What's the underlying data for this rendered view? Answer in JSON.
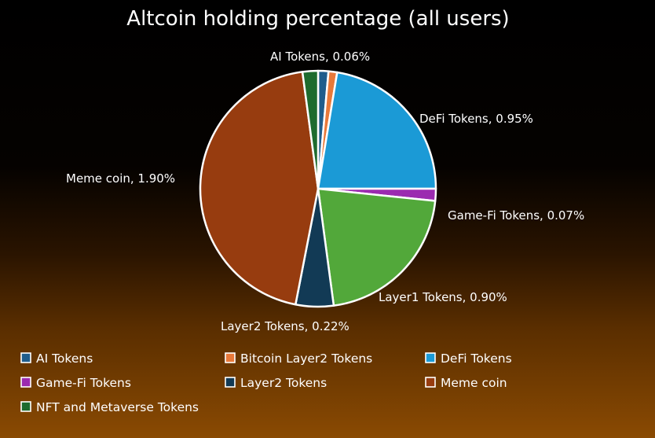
{
  "chart_data": {
    "type": "pie",
    "title": "Altcoin holding percentage (all users)",
    "categories": [
      "AI Tokens",
      "Bitcoin Layer2 Tokens",
      "DeFi Tokens",
      "Game-Fi Tokens",
      "Layer1 Tokens",
      "Layer2 Tokens",
      "Meme coin",
      "NFT and Metaverse Tokens"
    ],
    "values": [
      0.06,
      0.05,
      0.95,
      0.07,
      0.9,
      0.22,
      1.9,
      0.09
    ],
    "colors": [
      "#1f5d8c",
      "#e8793a",
      "#1b9ad6",
      "#9b2bb0",
      "#52a83a",
      "#123a55",
      "#973c0f",
      "#1e6b2e"
    ],
    "data_labels": [
      "AI Tokens, 0.06%",
      "",
      "DeFi Tokens, 0.95%",
      "Game-Fi Tokens, 0.07%",
      "Layer1 Tokens, 0.90%",
      "Layer2 Tokens, 0.22%",
      "Meme coin, 1.90%",
      ""
    ],
    "legend": {
      "placement": "bottom",
      "entries": [
        "AI Tokens",
        "Bitcoin Layer2 Tokens",
        "DeFi Tokens",
        "Game-Fi Tokens",
        "Layer2 Tokens",
        "Meme coin",
        "NFT and Metaverse Tokens"
      ],
      "colors": [
        "#1f5d8c",
        "#e8793a",
        "#1b9ad6",
        "#9b2bb0",
        "#123a55",
        "#973c0f",
        "#1e6b2e"
      ]
    },
    "slice_border_color": "#ffffff"
  }
}
